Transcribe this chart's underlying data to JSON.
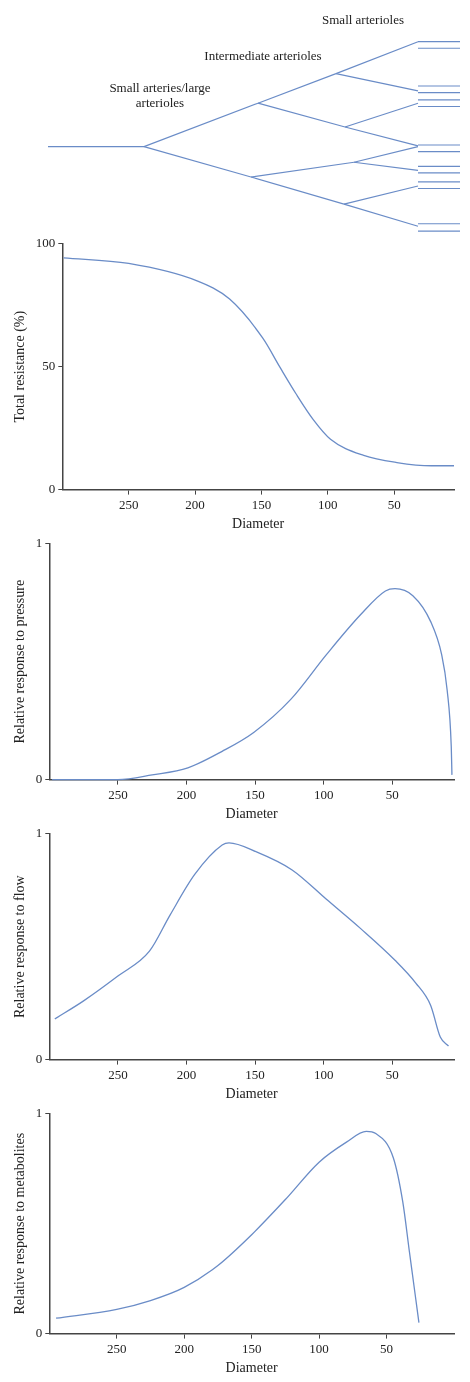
{
  "chart_data": [
    {
      "type": "line",
      "xlabel": "Diameter",
      "ylabel": "Total resistance (%)",
      "annotations": [
        "Small arterioles",
        "Intermediate arterioles",
        "Small arteries/large arterioles"
      ],
      "x": [
        299,
        250,
        199,
        174,
        149,
        136,
        124,
        111,
        98,
        73,
        48,
        22,
        5
      ],
      "xlim": [
        300,
        5
      ],
      "xticks": [
        250,
        200,
        150,
        100,
        50
      ],
      "ylim": [
        0,
        100
      ],
      "yticks": [
        0,
        50,
        100
      ],
      "grid": false,
      "legend": false,
      "marker": "none",
      "line_style": "solid",
      "series": [
        {
          "color": "#6a8cc7",
          "values": [
            94.3,
            92,
            85,
            77.5,
            61.6,
            49.7,
            39,
            28.5,
            20.5,
            13.9,
            11,
            9.7,
            9.7
          ]
        }
      ]
    },
    {
      "type": "line",
      "xlabel": "Diameter",
      "ylabel": "Relative response to pressure",
      "x": [
        298,
        250,
        225,
        199,
        174,
        151,
        124,
        98,
        73,
        55,
        48,
        35,
        22,
        14,
        10,
        7,
        6.5
      ],
      "xlim": [
        300,
        5
      ],
      "xticks": [
        250,
        200,
        150,
        100,
        50
      ],
      "ylim": [
        0,
        1
      ],
      "yticks": [
        0,
        1
      ],
      "grid": false,
      "legend": false,
      "marker": "none",
      "line_style": "solid",
      "series": [
        {
          "color": "#6a8cc7",
          "values": [
            0,
            0,
            0.02,
            0.05,
            0.12,
            0.2,
            0.34,
            0.53,
            0.7,
            0.8,
            0.81,
            0.78,
            0.67,
            0.53,
            0.38,
            0.14,
            0.02
          ]
        }
      ]
    },
    {
      "type": "line",
      "xlabel": "Diameter",
      "ylabel": "Relative response to flow",
      "x": [
        296,
        275,
        250,
        227,
        212,
        194,
        174,
        169,
        149,
        123,
        98,
        73,
        48,
        33,
        22,
        15,
        9
      ],
      "xlim": [
        300,
        5
      ],
      "xticks": [
        250,
        200,
        150,
        100,
        50
      ],
      "ylim": [
        0,
        1
      ],
      "yticks": [
        0,
        1
      ],
      "grid": false,
      "legend": false,
      "marker": "none",
      "line_style": "solid",
      "series": [
        {
          "color": "#6a8cc7",
          "values": [
            0.18,
            0.26,
            0.37,
            0.48,
            0.64,
            0.82,
            0.95,
            0.96,
            0.92,
            0.84,
            0.71,
            0.58,
            0.44,
            0.34,
            0.24,
            0.1,
            0.06
          ]
        }
      ]
    },
    {
      "type": "line",
      "xlabel": "Diameter",
      "ylabel": "Relative response to metabolites",
      "x": [
        295,
        250,
        225,
        200,
        175,
        150,
        125,
        100,
        80,
        65,
        58,
        45,
        38,
        33,
        26
      ],
      "xlim": [
        300,
        0
      ],
      "xticks": [
        250,
        200,
        150,
        100,
        50
      ],
      "ylim": [
        0,
        1
      ],
      "yticks": [
        0,
        1
      ],
      "grid": false,
      "legend": false,
      "marker": "none",
      "line_style": "solid",
      "series": [
        {
          "color": "#6a8cc7",
          "values": [
            0.07,
            0.11,
            0.15,
            0.21,
            0.31,
            0.45,
            0.61,
            0.78,
            0.87,
            0.92,
            0.91,
            0.8,
            0.6,
            0.37,
            0.05
          ]
        }
      ]
    }
  ]
}
